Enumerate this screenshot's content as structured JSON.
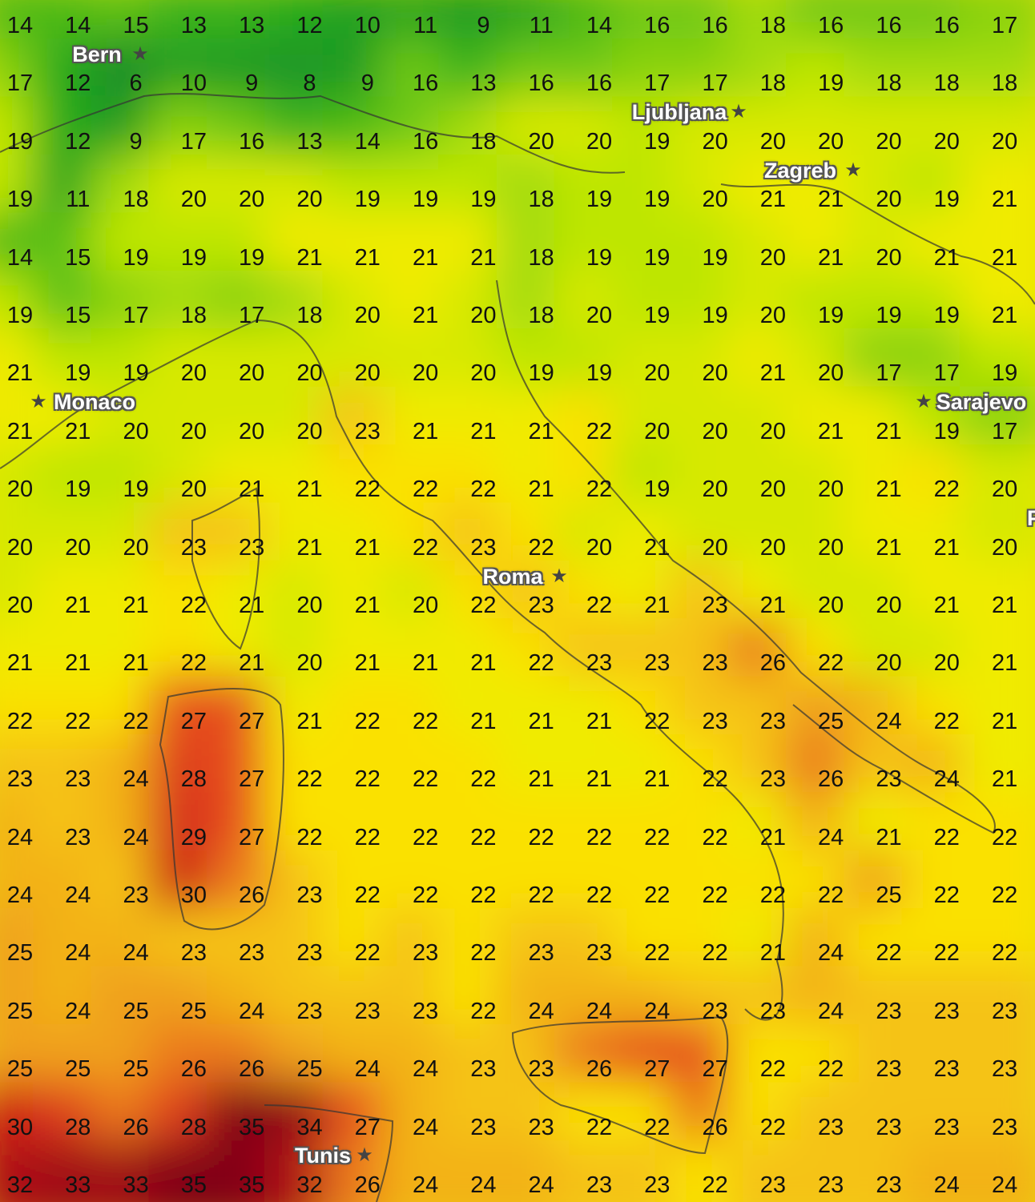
{
  "map": {
    "type": "temperature-grid",
    "unit": "°C",
    "colors": {
      "cold": "#1fa51f",
      "cool": "#8fd400",
      "mild": "#d8e800",
      "warm": "#f5e600",
      "hot": "#f0a020",
      "very_hot": "#e02020",
      "extreme": "#8a0010"
    },
    "grid": [
      [
        "14",
        "14",
        "15",
        "13",
        "13",
        "12",
        "10",
        "11",
        "9",
        "11",
        "14",
        "16",
        "16",
        "18",
        "16",
        "16",
        "16",
        "17"
      ],
      [
        "17",
        "12",
        "6",
        "10",
        "9",
        "8",
        "9",
        "16",
        "13",
        "16",
        "16",
        "17",
        "17",
        "18",
        "19",
        "18",
        "18",
        "18"
      ],
      [
        "19",
        "12",
        "9",
        "17",
        "16",
        "13",
        "14",
        "16",
        "18",
        "20",
        "20",
        "19",
        "20",
        "20",
        "20",
        "20",
        "20",
        "20"
      ],
      [
        "19",
        "11",
        "18",
        "20",
        "20",
        "20",
        "19",
        "19",
        "19",
        "18",
        "19",
        "19",
        "20",
        "21",
        "21",
        "20",
        "19",
        "21"
      ],
      [
        "14",
        "15",
        "19",
        "19",
        "19",
        "21",
        "21",
        "21",
        "21",
        "18",
        "19",
        "19",
        "19",
        "20",
        "21",
        "20",
        "21",
        "21"
      ],
      [
        "19",
        "15",
        "17",
        "18",
        "17",
        "18",
        "20",
        "21",
        "20",
        "18",
        "20",
        "19",
        "19",
        "20",
        "19",
        "19",
        "19",
        "21"
      ],
      [
        "21",
        "19",
        "19",
        "20",
        "20",
        "20",
        "20",
        "20",
        "20",
        "19",
        "19",
        "20",
        "20",
        "21",
        "20",
        "17",
        "17",
        "19"
      ],
      [
        "21",
        "21",
        "20",
        "20",
        "20",
        "20",
        "23",
        "21",
        "21",
        "21",
        "22",
        "20",
        "20",
        "20",
        "21",
        "21",
        "19",
        "17"
      ],
      [
        "20",
        "19",
        "19",
        "20",
        "21",
        "21",
        "22",
        "22",
        "22",
        "21",
        "22",
        "19",
        "20",
        "20",
        "20",
        "21",
        "22",
        "20"
      ],
      [
        "20",
        "20",
        "20",
        "23",
        "23",
        "21",
        "21",
        "22",
        "23",
        "22",
        "20",
        "21",
        "20",
        "20",
        "20",
        "21",
        "21",
        "20"
      ],
      [
        "20",
        "21",
        "21",
        "22",
        "21",
        "20",
        "21",
        "20",
        "22",
        "23",
        "22",
        "21",
        "23",
        "21",
        "20",
        "20",
        "21",
        "21"
      ],
      [
        "21",
        "21",
        "21",
        "22",
        "21",
        "20",
        "21",
        "21",
        "21",
        "22",
        "23",
        "23",
        "23",
        "26",
        "22",
        "20",
        "20",
        "21"
      ],
      [
        "22",
        "22",
        "22",
        "27",
        "27",
        "21",
        "22",
        "22",
        "21",
        "21",
        "21",
        "22",
        "23",
        "23",
        "25",
        "24",
        "22",
        "21"
      ],
      [
        "23",
        "23",
        "24",
        "28",
        "27",
        "22",
        "22",
        "22",
        "22",
        "21",
        "21",
        "21",
        "22",
        "23",
        "26",
        "23",
        "24",
        "21"
      ],
      [
        "24",
        "23",
        "24",
        "29",
        "27",
        "22",
        "22",
        "22",
        "22",
        "22",
        "22",
        "22",
        "22",
        "21",
        "24",
        "21",
        "22",
        "22"
      ],
      [
        "24",
        "24",
        "23",
        "30",
        "26",
        "23",
        "22",
        "22",
        "22",
        "22",
        "22",
        "22",
        "22",
        "22",
        "22",
        "25",
        "22",
        "22"
      ],
      [
        "25",
        "24",
        "24",
        "23",
        "23",
        "23",
        "22",
        "23",
        "22",
        "23",
        "23",
        "22",
        "22",
        "21",
        "24",
        "22",
        "22",
        "22"
      ],
      [
        "25",
        "24",
        "25",
        "25",
        "24",
        "23",
        "23",
        "23",
        "22",
        "24",
        "24",
        "24",
        "23",
        "23",
        "24",
        "23",
        "23",
        "23"
      ],
      [
        "25",
        "25",
        "25",
        "26",
        "26",
        "25",
        "24",
        "24",
        "23",
        "23",
        "26",
        "27",
        "27",
        "22",
        "22",
        "23",
        "23",
        "23"
      ],
      [
        "30",
        "28",
        "26",
        "28",
        "35",
        "34",
        "27",
        "24",
        "23",
        "23",
        "22",
        "22",
        "26",
        "22",
        "23",
        "23",
        "23",
        "23"
      ],
      [
        "32",
        "33",
        "33",
        "35",
        "35",
        "32",
        "26",
        "24",
        "24",
        "24",
        "23",
        "23",
        "22",
        "23",
        "23",
        "23",
        "24",
        "24"
      ]
    ],
    "cities": [
      {
        "name": "Bern"
      },
      {
        "name": "Ljubljana"
      },
      {
        "name": "Zagreb"
      },
      {
        "name": "Sarajevo"
      },
      {
        "name": "Monaco"
      },
      {
        "name": "Roma"
      },
      {
        "name": "Tunis"
      },
      {
        "name": "Po"
      }
    ]
  }
}
